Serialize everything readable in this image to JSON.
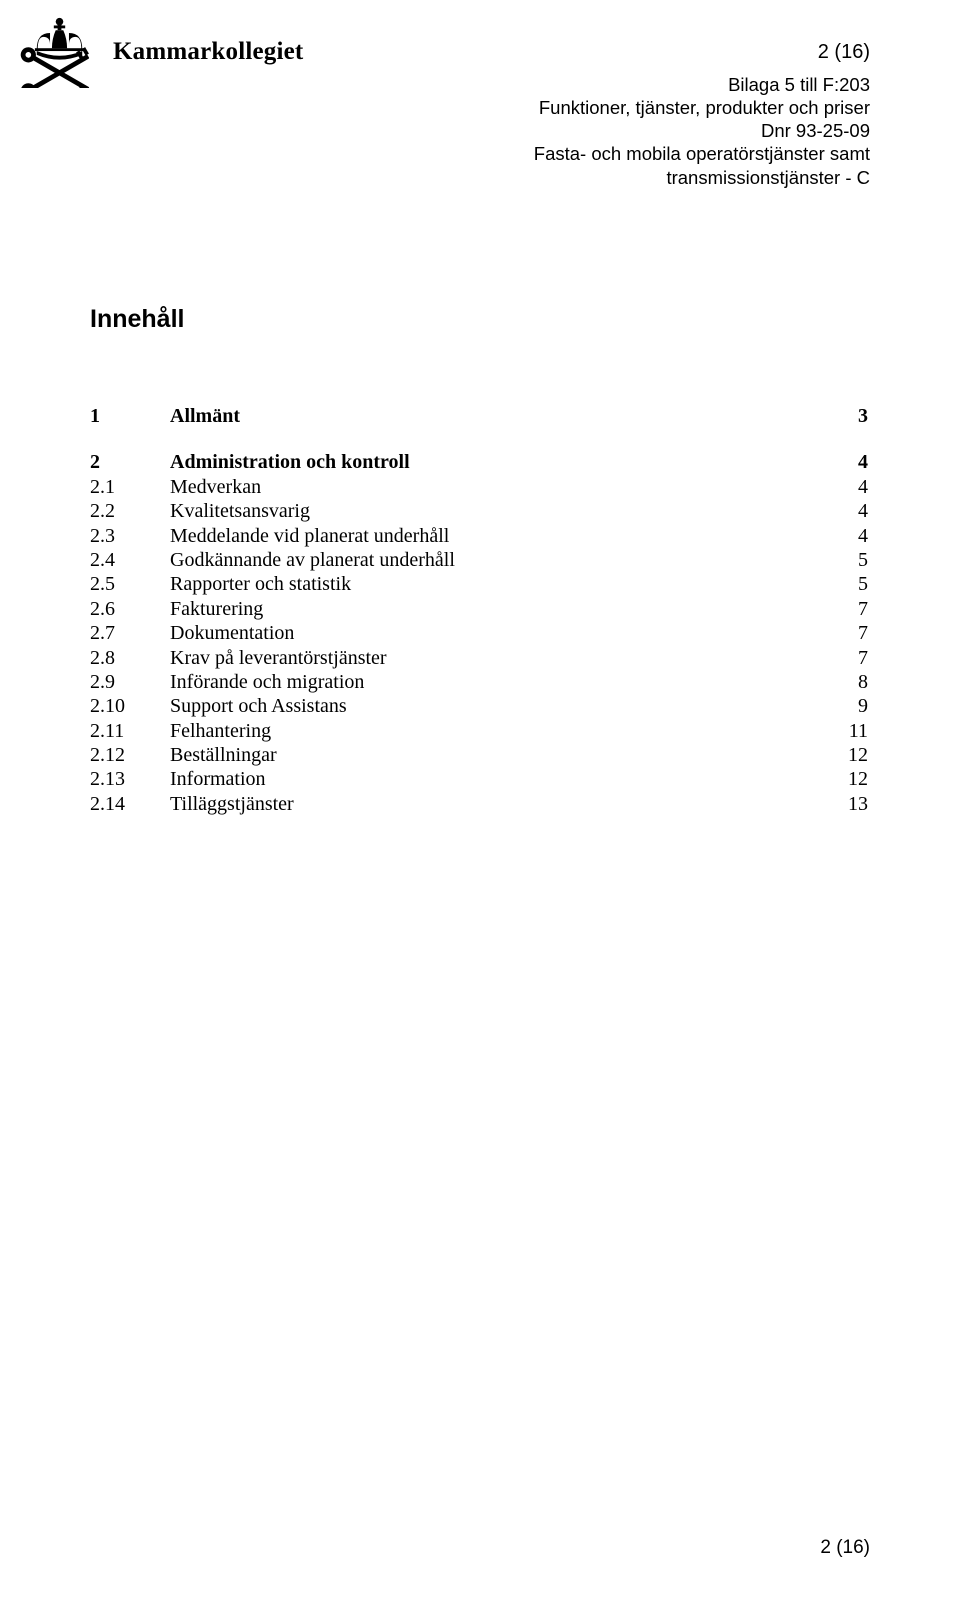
{
  "logo": {
    "org_name": "Kammarkollegiet"
  },
  "header": {
    "page_indicator": "2 (16)",
    "lines": [
      "Bilaga 5 till F:203",
      "Funktioner, tjänster, produkter och priser",
      "Dnr 93-25-09",
      "Fasta- och mobila operatörstjänster samt",
      "transmissionstjänster - C"
    ]
  },
  "heading": "Innehåll",
  "toc": [
    {
      "num": "1",
      "title": "Allmänt",
      "page": "3",
      "bold": true,
      "gap_before": false
    },
    {
      "num": "2",
      "title": "Administration och kontroll",
      "page": "4",
      "bold": true,
      "gap_before": true
    },
    {
      "num": "2.1",
      "title": "Medverkan",
      "page": "4",
      "bold": false,
      "gap_before": false
    },
    {
      "num": "2.2",
      "title": "Kvalitetsansvarig",
      "page": "4",
      "bold": false,
      "gap_before": false
    },
    {
      "num": "2.3",
      "title": "Meddelande vid planerat underhåll",
      "page": "4",
      "bold": false,
      "gap_before": false
    },
    {
      "num": "2.4",
      "title": "Godkännande av planerat underhåll",
      "page": "5",
      "bold": false,
      "gap_before": false
    },
    {
      "num": "2.5",
      "title": "Rapporter och statistik",
      "page": "5",
      "bold": false,
      "gap_before": false
    },
    {
      "num": "2.6",
      "title": "Fakturering",
      "page": "7",
      "bold": false,
      "gap_before": false
    },
    {
      "num": "2.7",
      "title": "Dokumentation",
      "page": "7",
      "bold": false,
      "gap_before": false
    },
    {
      "num": "2.8",
      "title": "Krav på leverantörstjänster",
      "page": "7",
      "bold": false,
      "gap_before": false
    },
    {
      "num": "2.9",
      "title": "Införande och migration",
      "page": "8",
      "bold": false,
      "gap_before": false
    },
    {
      "num": "2.10",
      "title": "Support och Assistans",
      "page": "9",
      "bold": false,
      "gap_before": false
    },
    {
      "num": "2.11",
      "title": "Felhantering",
      "page": "11",
      "bold": false,
      "gap_before": false
    },
    {
      "num": "2.12",
      "title": "Beställningar",
      "page": "12",
      "bold": false,
      "gap_before": false
    },
    {
      "num": "2.13",
      "title": "Information",
      "page": "12",
      "bold": false,
      "gap_before": false
    },
    {
      "num": "2.14",
      "title": "Tilläggstjänster",
      "page": "13",
      "bold": false,
      "gap_before": false
    }
  ],
  "footer": {
    "page_indicator": "2 (16)"
  }
}
